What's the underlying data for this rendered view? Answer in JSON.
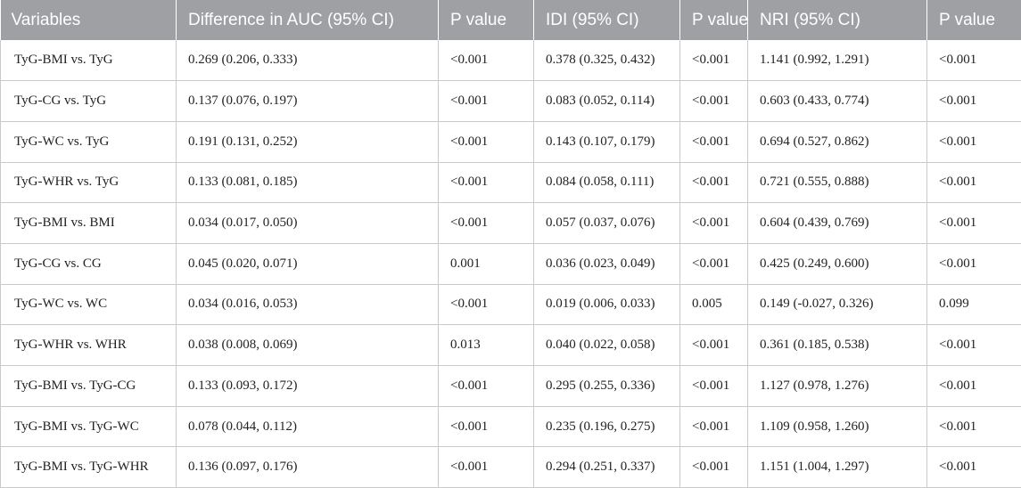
{
  "table": {
    "headers": [
      "Variables",
      "Difference in AUC (95% CI)",
      "P value",
      "IDI (95% CI)",
      "P value",
      "NRI (95% CI)",
      "P value"
    ],
    "rows": [
      [
        "TyG-BMI vs. TyG",
        "0.269 (0.206, 0.333)",
        "<0.001",
        "0.378 (0.325, 0.432)",
        "<0.001",
        "1.141 (0.992, 1.291)",
        "<0.001"
      ],
      [
        "TyG-CG vs. TyG",
        "0.137 (0.076, 0.197)",
        "<0.001",
        "0.083 (0.052, 0.114)",
        "<0.001",
        "0.603 (0.433, 0.774)",
        "<0.001"
      ],
      [
        "TyG-WC vs. TyG",
        "0.191 (0.131, 0.252)",
        "<0.001",
        "0.143 (0.107, 0.179)",
        "<0.001",
        "0.694 (0.527, 0.862)",
        "<0.001"
      ],
      [
        "TyG-WHR vs. TyG",
        "0.133 (0.081, 0.185)",
        "<0.001",
        "0.084 (0.058, 0.111)",
        "<0.001",
        "0.721 (0.555, 0.888)",
        "<0.001"
      ],
      [
        "TyG-BMI vs. BMI",
        "0.034 (0.017, 0.050)",
        "<0.001",
        "0.057 (0.037, 0.076)",
        "<0.001",
        "0.604 (0.439, 0.769)",
        "<0.001"
      ],
      [
        "TyG-CG vs. CG",
        "0.045 (0.020, 0.071)",
        "0.001",
        "0.036 (0.023, 0.049)",
        "<0.001",
        "0.425 (0.249, 0.600)",
        "<0.001"
      ],
      [
        "TyG-WC vs. WC",
        "0.034 (0.016, 0.053)",
        "<0.001",
        "0.019 (0.006, 0.033)",
        "0.005",
        "0.149 (-0.027, 0.326)",
        "0.099"
      ],
      [
        "TyG-WHR vs. WHR",
        "0.038 (0.008, 0.069)",
        "0.013",
        "0.040 (0.022, 0.058)",
        "<0.001",
        "0.361 (0.185, 0.538)",
        "<0.001"
      ],
      [
        "TyG-BMI vs. TyG-CG",
        "0.133 (0.093, 0.172)",
        "<0.001",
        "0.295 (0.255, 0.336)",
        "<0.001",
        "1.127 (0.978, 1.276)",
        "<0.001"
      ],
      [
        "TyG-BMI vs. TyG-WC",
        "0.078 (0.044, 0.112)",
        "<0.001",
        "0.235 (0.196, 0.275)",
        "<0.001",
        "1.109 (0.958, 1.260)",
        "<0.001"
      ],
      [
        "TyG-BMI vs. TyG-WHR",
        "0.136 (0.097, 0.176)",
        "<0.001",
        "0.294 (0.251, 0.337)",
        "<0.001",
        "1.151 (1.004, 1.297)",
        "<0.001"
      ]
    ]
  },
  "colors": {
    "header_bg": "#9ea0a3",
    "header_text": "#ffffff",
    "grid_line": "#c9c9c9"
  }
}
